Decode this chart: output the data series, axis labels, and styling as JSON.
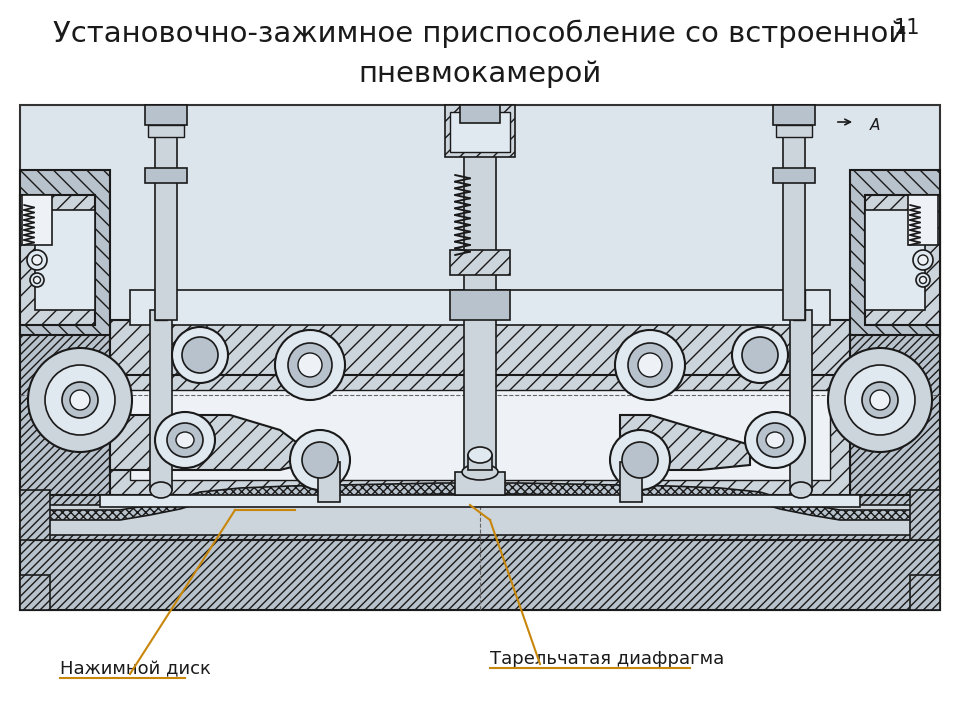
{
  "title_line1": "Установочно-зажимное приспособление со встроенной",
  "title_line2": "пневмокамерой",
  "page_number": "11",
  "label_left": "Нажимной диск",
  "label_right": "Тарельчатая диафрагма",
  "title_fontsize": 21,
  "label_fontsize": 13,
  "page_fontsize": 15,
  "bg_color": "#ffffff",
  "title_color": "#1a1a1a",
  "label_color": "#1a1a1a",
  "arrow_color": "#c8860a",
  "drawing_bg": "#dde4ed",
  "ec": "#1a1a1a",
  "hatch_fc": "#b8c2cc",
  "body_fc": "#ccd4dc",
  "light_fc": "#e0e8f0",
  "very_light_fc": "#eef2f6"
}
